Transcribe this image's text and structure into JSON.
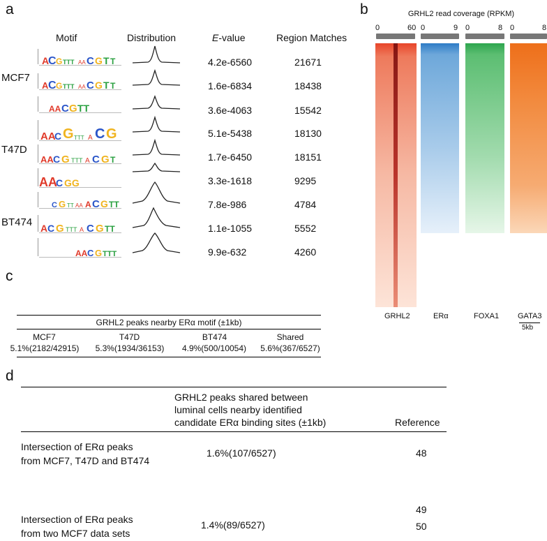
{
  "panels": {
    "a": "a",
    "b": "b",
    "c": "c",
    "d": "d"
  },
  "panel_a": {
    "headers": {
      "motif": "Motif",
      "distribution": "Distribution",
      "evalue_prefix": "E",
      "evalue_suffix": "-value",
      "region": "Region Matches"
    },
    "groups": [
      {
        "label": "MCF7"
      },
      {
        "label": "T47D"
      },
      {
        "label": "BT474"
      }
    ],
    "rows": [
      {
        "evalue": "4.2e-6560",
        "matches": "21671"
      },
      {
        "evalue": "1.6e-6834",
        "matches": "18438"
      },
      {
        "evalue": "3.6e-4063",
        "matches": "15542"
      },
      {
        "evalue": "5.1e-5438",
        "matches": "18130"
      },
      {
        "evalue": "1.7e-6450",
        "matches": "18151"
      },
      {
        "evalue": "3.3e-1618",
        "matches": "9295"
      },
      {
        "evalue": "7.8e-986",
        "matches": "4784"
      },
      {
        "evalue": "1.1e-1055",
        "matches": "5552"
      },
      {
        "evalue": "9.9e-632",
        "matches": "4260"
      }
    ]
  },
  "panel_b": {
    "title": "GRHL2 read coverage (RPKM)",
    "heatmaps": [
      {
        "label": "GRHL2",
        "min": "0",
        "max": "60",
        "color": "#e8452a"
      },
      {
        "label": "ERα",
        "min": "0",
        "max": "9",
        "color": "#3b87cc"
      },
      {
        "label": "FOXA1",
        "min": "0",
        "max": "8",
        "color": "#33a852"
      },
      {
        "label": "GATA3",
        "min": "0",
        "max": "8",
        "color": "#f07a24"
      }
    ],
    "scale_label": "5kb"
  },
  "panel_c": {
    "title": "GRHL2 peaks nearby ERα motif (±1kb)",
    "columns": [
      "MCF7",
      "T47D",
      "BT474",
      "Shared"
    ],
    "values": [
      "5.1%(2182/42915)",
      "5.3%(1934/36153)",
      "4.9%(500/10054)",
      "5.6%(367/6527)"
    ]
  },
  "panel_d": {
    "header_lines": [
      "GRHL2 peaks shared between",
      "luminal cells nearby identified",
      "candidate ERα binding sites (±1kb)"
    ],
    "reference_header": "Reference",
    "rows": [
      {
        "label_lines": [
          "Intersection of ERα peaks",
          "from MCF7, T47D and BT474"
        ],
        "value": "1.6%(107/6527)",
        "refs": [
          "48"
        ]
      },
      {
        "label_lines": [
          "Intersection of ERα peaks",
          "from two MCF7 data sets"
        ],
        "value": "1.4%(89/6527)",
        "refs": [
          "49",
          "50"
        ]
      }
    ]
  }
}
